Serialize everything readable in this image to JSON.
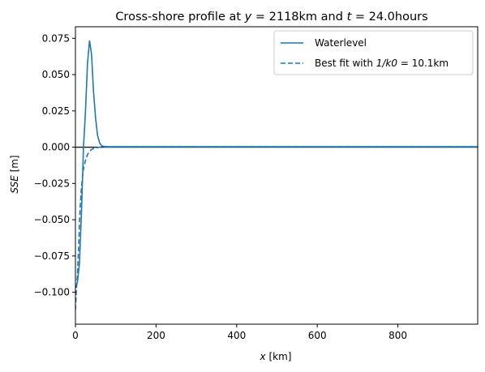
{
  "chart_data": {
    "type": "line",
    "title": {
      "prefix": "Cross-shore profile at ",
      "y_symbol": "y",
      "y_value": " = 2118km and ",
      "t_symbol": "t",
      "t_value": " = 24.0hours"
    },
    "xlabel": {
      "symbol": "x",
      "unit": " [km]"
    },
    "ylabel": {
      "symbol": "SSE",
      "unit": " [m]"
    },
    "xlim": [
      0,
      998
    ],
    "ylim": [
      -0.122,
      0.083
    ],
    "xticks": [
      0,
      200,
      400,
      600,
      800
    ],
    "xtick_labels": [
      "0",
      "200",
      "400",
      "600",
      "800"
    ],
    "yticks": [
      -0.1,
      -0.075,
      -0.05,
      -0.025,
      0.0,
      0.025,
      0.05,
      0.075
    ],
    "ytick_labels": [
      "−0.100",
      "−0.075",
      "−0.050",
      "−0.025",
      "0.000",
      "0.025",
      "0.050",
      "0.075"
    ],
    "zero_line": 0,
    "grid": false,
    "legend_placement": "top-right",
    "series": [
      {
        "name": "Waterlevel",
        "style": "solid",
        "color": "#1f77b4",
        "x": [
          0,
          5,
          10,
          15,
          20,
          25,
          30,
          35,
          40,
          45,
          50,
          55,
          60,
          65,
          70,
          80,
          100,
          200,
          400,
          600,
          800,
          998
        ],
        "y": [
          -0.097,
          -0.093,
          -0.08,
          -0.045,
          0.0,
          0.025,
          0.058,
          0.0735,
          0.064,
          0.038,
          0.02,
          0.008,
          0.003,
          0.001,
          0.0005,
          0.0003,
          0.0003,
          0.0003,
          0.0003,
          0.0003,
          0.0003,
          0.0003
        ]
      },
      {
        "name": "Best fit with 1/k0 = 10.1km",
        "legend_parts": {
          "prefix": "Best fit with ",
          "math": "1/k0",
          "suffix": " = 10.1km"
        },
        "style": "dashed",
        "color": "#1f77b4",
        "x": [
          0,
          2,
          5,
          8,
          10,
          12,
          15,
          18,
          20,
          25,
          30,
          35,
          40,
          50,
          60,
          70,
          80,
          100,
          200,
          400,
          600,
          800,
          998
        ],
        "y": [
          -0.112,
          -0.1,
          -0.088,
          -0.068,
          -0.052,
          -0.04,
          -0.028,
          -0.019,
          -0.015,
          -0.009,
          -0.005,
          -0.003,
          -0.0015,
          -0.0005,
          0.0,
          0.0002,
          0.0003,
          0.0003,
          0.0003,
          0.0003,
          0.0003,
          0.0003,
          0.0003
        ]
      }
    ]
  }
}
